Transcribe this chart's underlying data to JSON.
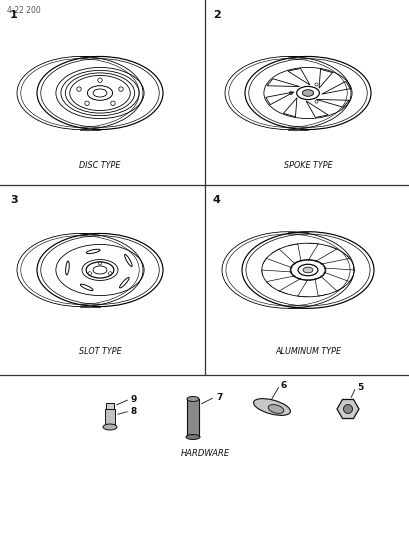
{
  "title": "4:22 200",
  "background_color": "#ffffff",
  "line_color": "#111111",
  "labels": {
    "1": "1",
    "2": "2",
    "3": "3",
    "4": "4",
    "disc": "DISC TYPE",
    "spoke": "SPOKE TYPE",
    "slot": "SLOT TYPE",
    "aluminum": "ALUMINUM TYPE",
    "hardware": "HARDWARE"
  },
  "figsize": [
    4.1,
    5.33
  ],
  "dpi": 100,
  "grid_rows": [
    0,
    185,
    375,
    533
  ],
  "grid_cols": [
    0,
    205,
    410
  ]
}
